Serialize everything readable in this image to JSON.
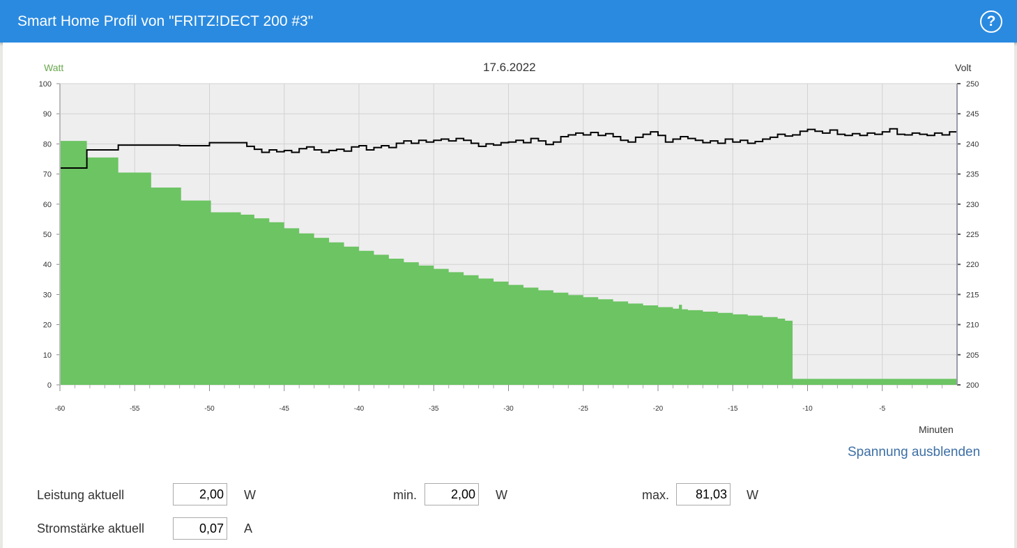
{
  "header": {
    "title": "Smart Home Profil von \"FRITZ!DECT 200 #3\"",
    "help_icon": "question-circle-icon"
  },
  "chart_data": {
    "type": "area+line",
    "title": "17.6.2022",
    "ylabel_left": "Watt",
    "ylabel_right": "Volt",
    "xlabel": "Minuten",
    "xlim": [
      -60,
      0
    ],
    "ylim_left": [
      0,
      100
    ],
    "ylim_right": [
      200,
      250
    ],
    "xticks": [
      -60,
      -55,
      -50,
      -45,
      -40,
      -35,
      -30,
      -25,
      -20,
      -15,
      -10,
      -5
    ],
    "yticks_left": [
      0,
      10,
      20,
      30,
      40,
      50,
      60,
      70,
      80,
      90,
      100
    ],
    "yticks_right": [
      200,
      205,
      210,
      215,
      220,
      225,
      230,
      235,
      240,
      245,
      250
    ],
    "grid": true,
    "colors": {
      "watt": "#6cc463",
      "volt": "#000000",
      "left_axis_label": "#6aa84f"
    },
    "series": [
      {
        "name": "Watt",
        "axis": "left",
        "style": "step-area",
        "points": [
          [
            -60,
            81.0
          ],
          [
            -58.2,
            75.5
          ],
          [
            -56.1,
            70.5
          ],
          [
            -53.9,
            65.5
          ],
          [
            -51.9,
            61.2
          ],
          [
            -49.9,
            57.3
          ],
          [
            -47.9,
            56.5
          ],
          [
            -47,
            55.3
          ],
          [
            -46,
            54.0
          ],
          [
            -45,
            52.0
          ],
          [
            -44,
            50.3
          ],
          [
            -43,
            48.8
          ],
          [
            -42,
            47.3
          ],
          [
            -41,
            45.9
          ],
          [
            -40,
            44.5
          ],
          [
            -39,
            43.2
          ],
          [
            -38,
            41.9
          ],
          [
            -37,
            40.7
          ],
          [
            -36,
            39.6
          ],
          [
            -35,
            38.5
          ],
          [
            -34,
            37.4
          ],
          [
            -33,
            36.4
          ],
          [
            -32,
            35.3
          ],
          [
            -31,
            34.3
          ],
          [
            -30,
            33.2
          ],
          [
            -29,
            32.3
          ],
          [
            -28,
            31.4
          ],
          [
            -27,
            30.6
          ],
          [
            -26,
            29.8
          ],
          [
            -25,
            29.1
          ],
          [
            -24,
            28.4
          ],
          [
            -23,
            27.7
          ],
          [
            -22,
            27.0
          ],
          [
            -21,
            26.4
          ],
          [
            -20,
            25.8
          ],
          [
            -19,
            25.3
          ],
          [
            -18.6,
            26.6
          ],
          [
            -18.4,
            25.1
          ],
          [
            -18,
            24.8
          ],
          [
            -17,
            24.3
          ],
          [
            -16,
            23.9
          ],
          [
            -15,
            23.4
          ],
          [
            -14,
            23.0
          ],
          [
            -13,
            22.5
          ],
          [
            -12,
            22.0
          ],
          [
            -11.5,
            21.3
          ],
          [
            -11,
            2.0
          ],
          [
            0,
            2.0
          ]
        ]
      },
      {
        "name": "Volt",
        "axis": "right",
        "style": "step-line",
        "points": [
          [
            -60,
            236.0
          ],
          [
            -58.2,
            239.0
          ],
          [
            -56.1,
            239.8
          ],
          [
            -52,
            239.7
          ],
          [
            -50,
            240.2
          ],
          [
            -47.9,
            240.2
          ],
          [
            -47.5,
            239.6
          ],
          [
            -47,
            239.1
          ],
          [
            -46.5,
            238.6
          ],
          [
            -46,
            239.0
          ],
          [
            -45.5,
            238.7
          ],
          [
            -45,
            238.9
          ],
          [
            -44.5,
            238.6
          ],
          [
            -44,
            239.2
          ],
          [
            -43.5,
            239.5
          ],
          [
            -43,
            239.0
          ],
          [
            -42.5,
            238.6
          ],
          [
            -42,
            238.9
          ],
          [
            -41.5,
            239.1
          ],
          [
            -41,
            238.8
          ],
          [
            -40.5,
            239.5
          ],
          [
            -40,
            239.7
          ],
          [
            -39.5,
            239.0
          ],
          [
            -39,
            239.4
          ],
          [
            -38.5,
            239.7
          ],
          [
            -38,
            239.4
          ],
          [
            -37.5,
            240.1
          ],
          [
            -37,
            240.5
          ],
          [
            -36.5,
            240.1
          ],
          [
            -36,
            240.6
          ],
          [
            -35.5,
            240.3
          ],
          [
            -35,
            240.6
          ],
          [
            -34.5,
            240.8
          ],
          [
            -34,
            240.5
          ],
          [
            -33.5,
            240.9
          ],
          [
            -33,
            240.6
          ],
          [
            -32.5,
            240.1
          ],
          [
            -32,
            239.6
          ],
          [
            -31.5,
            240.0
          ],
          [
            -31,
            239.8
          ],
          [
            -30.5,
            240.2
          ],
          [
            -30,
            240.3
          ],
          [
            -29.5,
            240.6
          ],
          [
            -29,
            240.2
          ],
          [
            -28.5,
            240.9
          ],
          [
            -28,
            240.5
          ],
          [
            -27.5,
            239.9
          ],
          [
            -27,
            240.3
          ],
          [
            -26.5,
            241.2
          ],
          [
            -26,
            241.5
          ],
          [
            -25.5,
            241.8
          ],
          [
            -25,
            241.5
          ],
          [
            -24.5,
            241.9
          ],
          [
            -24,
            241.4
          ],
          [
            -23.5,
            241.7
          ],
          [
            -23,
            241.2
          ],
          [
            -22.5,
            240.6
          ],
          [
            -22,
            240.3
          ],
          [
            -21.5,
            241.1
          ],
          [
            -21,
            241.6
          ],
          [
            -20.5,
            242.0
          ],
          [
            -20,
            241.4
          ],
          [
            -19.5,
            240.3
          ],
          [
            -19,
            240.8
          ],
          [
            -18.5,
            241.2
          ],
          [
            -18,
            240.9
          ],
          [
            -17.5,
            240.6
          ],
          [
            -17,
            240.2
          ],
          [
            -16.5,
            240.5
          ],
          [
            -16,
            240.1
          ],
          [
            -15.5,
            240.8
          ],
          [
            -15,
            240.3
          ],
          [
            -14.5,
            240.6
          ],
          [
            -14,
            240.1
          ],
          [
            -13.5,
            240.4
          ],
          [
            -13,
            240.8
          ],
          [
            -12.5,
            241.1
          ],
          [
            -12,
            241.6
          ],
          [
            -11.5,
            241.3
          ],
          [
            -11,
            241.5
          ],
          [
            -10.5,
            242.1
          ],
          [
            -10,
            242.4
          ],
          [
            -9.5,
            242.1
          ],
          [
            -9,
            241.8
          ],
          [
            -8.5,
            242.3
          ],
          [
            -8,
            241.6
          ],
          [
            -7.5,
            241.4
          ],
          [
            -7,
            241.7
          ],
          [
            -6.5,
            241.4
          ],
          [
            -6,
            241.8
          ],
          [
            -5.5,
            241.6
          ],
          [
            -5,
            242.0
          ],
          [
            -4.5,
            242.5
          ],
          [
            -4,
            241.6
          ],
          [
            -3.5,
            241.5
          ],
          [
            -3,
            241.8
          ],
          [
            -2.5,
            241.6
          ],
          [
            -2,
            241.4
          ],
          [
            -1.5,
            241.8
          ],
          [
            -1,
            241.5
          ],
          [
            -0.5,
            242.0
          ],
          [
            0,
            241.7
          ]
        ]
      }
    ]
  },
  "toggle_link": "Spannung ausblenden",
  "stats": {
    "power_label": "Leistung aktuell",
    "power_value": "2,00",
    "power_unit": "W",
    "min_label": "min.",
    "min_value": "2,00",
    "min_unit": "W",
    "max_label": "max.",
    "max_value": "81,03",
    "max_unit": "W",
    "current_label": "Stromstärke aktuell",
    "current_value": "0,07",
    "current_unit": "A"
  }
}
